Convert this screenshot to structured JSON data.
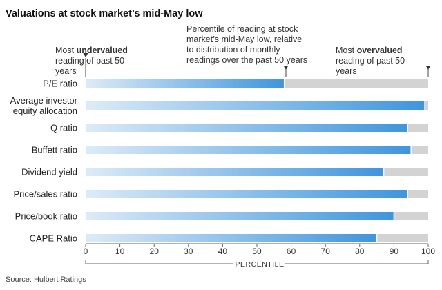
{
  "chart_data": {
    "type": "bar",
    "orientation": "horizontal",
    "title": "Valuations at stock market’s mid-May low",
    "categories": [
      "P/E ratio",
      "Average investor equity allocation",
      "Q ratio",
      "Buffett ratio",
      "Dividend yield",
      "Price/sales ratio",
      "Price/book ratio",
      "CAPE Ratio"
    ],
    "category_lines": [
      [
        "P/E ratio"
      ],
      [
        "Average investor",
        "equity allocation"
      ],
      [
        "Q ratio"
      ],
      [
        "Buffett ratio"
      ],
      [
        "Dividend yield"
      ],
      [
        "Price/sales ratio"
      ],
      [
        "Price/book ratio"
      ],
      [
        "CAPE Ratio"
      ]
    ],
    "values": [
      58,
      99,
      94,
      95,
      87,
      94,
      90,
      85
    ],
    "xlim": [
      0,
      100
    ],
    "xticks": [
      "0",
      "10",
      "20",
      "30",
      "40",
      "50",
      "60",
      "70",
      "80",
      "90",
      "100"
    ],
    "xlabel": "PERCENTILE",
    "colors": {
      "bar_start": "#ddebf7",
      "bar_end": "#3f95dd",
      "remainder": "#d3d3d3",
      "axis": "#666666"
    },
    "annotations": {
      "left": {
        "line1_pre": "Most ",
        "line1_bold": "undervalued",
        "line2": "reading of past 50",
        "line3": "years"
      },
      "center": {
        "lines": [
          "Percentile of reading at stock",
          "market’s mid-May low, relative",
          "to distribution of monthly",
          "readings over the past 50 years"
        ]
      },
      "right": {
        "line1_pre": "Most ",
        "line1_bold": "overvalued",
        "line2": "reading of past 50",
        "line3": "years"
      }
    }
  },
  "source": "Source: Hulbert Ratings"
}
